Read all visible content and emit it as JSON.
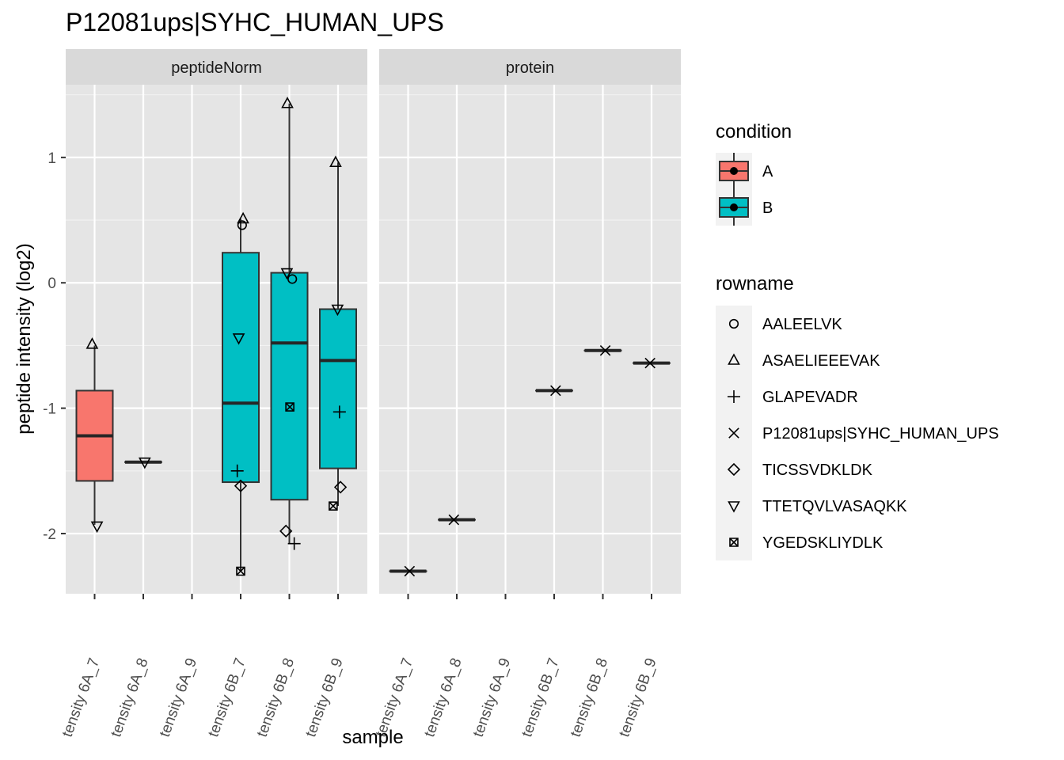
{
  "chart_data": {
    "type": "box",
    "title": "P12081ups|SYHC_HUMAN_UPS",
    "xlabel": "sample",
    "ylabel": "peptide intensity (log2)",
    "ylim": [
      -2.48,
      1.58
    ],
    "yticks": [
      -2,
      -1,
      0,
      1
    ],
    "ytick_labels": [
      "-2",
      "-1",
      "0",
      "1"
    ],
    "facets": [
      "peptideNorm",
      "protein"
    ],
    "categories": [
      "tensity 6A_7",
      "tensity 6A_8",
      "tensity 6A_9",
      "tensity 6B_7",
      "tensity 6B_8",
      "tensity 6B_9"
    ],
    "condition_by_category": [
      "A",
      "A",
      "A",
      "B",
      "B",
      "B"
    ],
    "legend_condition": {
      "title": "condition",
      "items": [
        {
          "label": "A",
          "color": "#F8766D"
        },
        {
          "label": "B",
          "color": "#00BFC4"
        }
      ]
    },
    "legend_rowname": {
      "title": "rowname",
      "items": [
        {
          "label": "AALEELVK",
          "shape": "circle"
        },
        {
          "label": "ASAELIEEEVAK",
          "shape": "triangle"
        },
        {
          "label": "GLAPEVADR",
          "shape": "plus"
        },
        {
          "label": "P12081ups|SYHC_HUMAN_UPS",
          "shape": "cross"
        },
        {
          "label": "TICSSVDKLDK",
          "shape": "diamond"
        },
        {
          "label": "TTETQVLVASAQKK",
          "shape": "triangle-down"
        },
        {
          "label": "YGEDSKLIYDLK",
          "shape": "square-cross"
        }
      ]
    },
    "boxes": [
      {
        "facet": 0,
        "category": 0,
        "condition": "A",
        "lower_whisker": -1.93,
        "q1": -1.58,
        "median": -1.22,
        "q3": -0.86,
        "upper_whisker": -0.5
      },
      {
        "facet": 0,
        "category": 1,
        "condition": "A",
        "lower_whisker": -1.43,
        "q1": -1.43,
        "median": -1.43,
        "q3": -1.43,
        "upper_whisker": -1.43
      },
      {
        "facet": 0,
        "category": 3,
        "condition": "B",
        "lower_whisker": -2.3,
        "q1": -1.59,
        "median": -0.96,
        "q3": 0.24,
        "upper_whisker": 0.51
      },
      {
        "facet": 0,
        "category": 4,
        "condition": "B",
        "lower_whisker": -2.08,
        "q1": -1.73,
        "median": -0.48,
        "q3": 0.08,
        "upper_whisker": 1.43
      },
      {
        "facet": 0,
        "category": 5,
        "condition": "B",
        "lower_whisker": -1.78,
        "q1": -1.48,
        "median": -0.62,
        "q3": -0.21,
        "upper_whisker": 0.96
      },
      {
        "facet": 1,
        "category": 0,
        "condition": "A",
        "lower_whisker": -2.3,
        "q1": -2.3,
        "median": -2.3,
        "q3": -2.3,
        "upper_whisker": -2.3
      },
      {
        "facet": 1,
        "category": 1,
        "condition": "A",
        "lower_whisker": -1.89,
        "q1": -1.89,
        "median": -1.89,
        "q3": -1.89,
        "upper_whisker": -1.89
      },
      {
        "facet": 1,
        "category": 3,
        "condition": "B",
        "lower_whisker": -0.86,
        "q1": -0.86,
        "median": -0.86,
        "q3": -0.86,
        "upper_whisker": -0.86
      },
      {
        "facet": 1,
        "category": 4,
        "condition": "B",
        "lower_whisker": -0.54,
        "q1": -0.54,
        "median": -0.54,
        "q3": -0.54,
        "upper_whisker": -0.54
      },
      {
        "facet": 1,
        "category": 5,
        "condition": "B",
        "lower_whisker": -0.64,
        "q1": -0.64,
        "median": -0.64,
        "q3": -0.64,
        "upper_whisker": -0.64
      }
    ],
    "points": [
      {
        "facet": 0,
        "category": 0,
        "jitter": -0.05,
        "y": -0.49,
        "rowname": "ASAELIEEEVAK"
      },
      {
        "facet": 0,
        "category": 0,
        "jitter": 0.05,
        "y": -1.94,
        "rowname": "TTETQVLVASAQKK"
      },
      {
        "facet": 0,
        "category": 1,
        "jitter": 0.03,
        "y": -1.43,
        "rowname": "TTETQVLVASAQKK"
      },
      {
        "facet": 0,
        "category": 3,
        "jitter": 0.05,
        "y": 0.51,
        "rowname": "ASAELIEEEVAK"
      },
      {
        "facet": 0,
        "category": 3,
        "jitter": 0.03,
        "y": 0.46,
        "rowname": "AALEELVK"
      },
      {
        "facet": 0,
        "category": 3,
        "jitter": -0.04,
        "y": -0.44,
        "rowname": "TTETQVLVASAQKK"
      },
      {
        "facet": 0,
        "category": 3,
        "jitter": -0.07,
        "y": -1.5,
        "rowname": "GLAPEVADR"
      },
      {
        "facet": 0,
        "category": 3,
        "jitter": 0.0,
        "y": -1.62,
        "rowname": "TICSSVDKLDK"
      },
      {
        "facet": 0,
        "category": 3,
        "jitter": 0.0,
        "y": -2.3,
        "rowname": "YGEDSKLIYDLK"
      },
      {
        "facet": 0,
        "category": 4,
        "jitter": -0.04,
        "y": 1.43,
        "rowname": "ASAELIEEEVAK"
      },
      {
        "facet": 0,
        "category": 4,
        "jitter": -0.05,
        "y": 0.08,
        "rowname": "TTETQVLVASAQKK"
      },
      {
        "facet": 0,
        "category": 4,
        "jitter": 0.06,
        "y": 0.03,
        "rowname": "AALEELVK"
      },
      {
        "facet": 0,
        "category": 4,
        "jitter": 0.01,
        "y": -0.99,
        "rowname": "YGEDSKLIYDLK"
      },
      {
        "facet": 0,
        "category": 4,
        "jitter": -0.07,
        "y": -1.98,
        "rowname": "TICSSVDKLDK"
      },
      {
        "facet": 0,
        "category": 4,
        "jitter": 0.1,
        "y": -2.08,
        "rowname": "GLAPEVADR"
      },
      {
        "facet": 0,
        "category": 5,
        "jitter": -0.05,
        "y": 0.96,
        "rowname": "ASAELIEEEVAK"
      },
      {
        "facet": 0,
        "category": 5,
        "jitter": -0.01,
        "y": -0.21,
        "rowname": "TTETQVLVASAQKK"
      },
      {
        "facet": 0,
        "category": 5,
        "jitter": 0.03,
        "y": -1.03,
        "rowname": "GLAPEVADR"
      },
      {
        "facet": 0,
        "category": 5,
        "jitter": 0.05,
        "y": -1.63,
        "rowname": "TICSSVDKLDK"
      },
      {
        "facet": 0,
        "category": 5,
        "jitter": -0.1,
        "y": -1.78,
        "rowname": "YGEDSKLIYDLK"
      },
      {
        "facet": 1,
        "category": 0,
        "jitter": 0.03,
        "y": -2.3,
        "rowname": "P12081ups|SYHC_HUMAN_UPS"
      },
      {
        "facet": 1,
        "category": 1,
        "jitter": -0.06,
        "y": -1.89,
        "rowname": "P12081ups|SYHC_HUMAN_UPS"
      },
      {
        "facet": 1,
        "category": 3,
        "jitter": 0.03,
        "y": -0.86,
        "rowname": "P12081ups|SYHC_HUMAN_UPS"
      },
      {
        "facet": 1,
        "category": 4,
        "jitter": 0.05,
        "y": -0.54,
        "rowname": "P12081ups|SYHC_HUMAN_UPS"
      },
      {
        "facet": 1,
        "category": 5,
        "jitter": -0.03,
        "y": -0.64,
        "rowname": "P12081ups|SYHC_HUMAN_UPS"
      }
    ],
    "grid": true,
    "legend_position": "right"
  }
}
